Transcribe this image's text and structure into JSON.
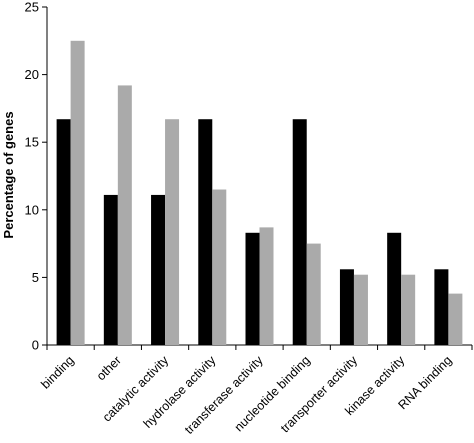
{
  "chart_data": {
    "type": "bar",
    "title": "",
    "xlabel": "",
    "ylabel": "Percentage of genes",
    "ylim": [
      0,
      25
    ],
    "yticks": [
      "0",
      "5",
      "10",
      "15",
      "20",
      "25"
    ],
    "grid": false,
    "categories": [
      "binding",
      "other",
      "catalytic activity",
      "hydrolase activity",
      "transferase activity",
      "nucleotide binding",
      "transporter activity",
      "kinase activity",
      "RNA binding"
    ],
    "series": [
      {
        "color": "#000000",
        "values": [
          16.7,
          11.1,
          11.1,
          16.7,
          8.3,
          16.7,
          5.6,
          8.3,
          5.6
        ]
      },
      {
        "color": "#aaaaaa",
        "values": [
          22.5,
          19.2,
          16.7,
          11.5,
          8.7,
          7.5,
          5.2,
          5.2,
          3.8
        ]
      }
    ]
  }
}
